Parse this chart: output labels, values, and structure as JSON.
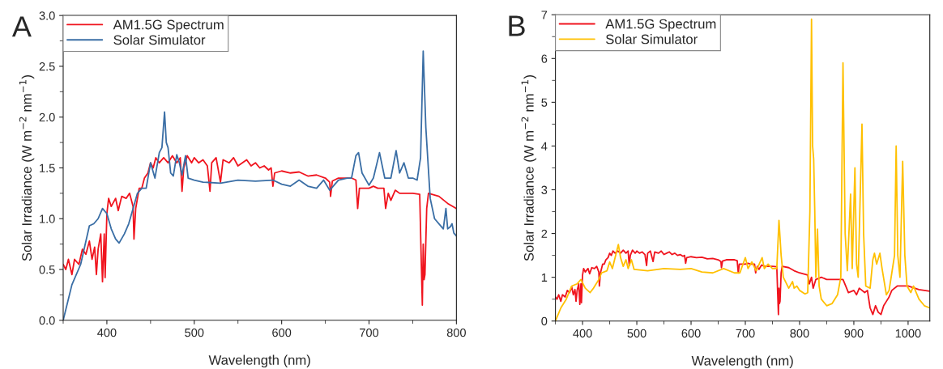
{
  "chart_data": [
    {
      "type": "line",
      "title": "A",
      "xlabel": "Wavelength (nm)",
      "ylabel": "Solar Irradiance (W m$^{−2}$ nm$^{−1}$)",
      "xlim": [
        350,
        800
      ],
      "ylim": [
        0,
        3
      ],
      "xticks": [
        400,
        500,
        600,
        700,
        800
      ],
      "yticks": [
        {
          "value": 0,
          "label": "0.0"
        },
        {
          "value": 0.5,
          "label": "0.5"
        },
        {
          "value": 1,
          "label": "1.0"
        },
        {
          "value": 1.5,
          "label": "1.5"
        },
        {
          "value": 2,
          "label": "2.0"
        },
        {
          "value": 2.5,
          "label": "2.5"
        },
        {
          "value": 3,
          "label": "3.0"
        }
      ],
      "legend": "top left",
      "series": [
        {
          "name": "AM1.5G Spectrum",
          "color": "#f0141e",
          "x": [
            350,
            353,
            356,
            360,
            363,
            368,
            372,
            376,
            380,
            383,
            386,
            388,
            390,
            393,
            395,
            397,
            398,
            400,
            402,
            405,
            410,
            413,
            417,
            422,
            426,
            430,
            431,
            433,
            437,
            440,
            443,
            447,
            450,
            453,
            456,
            460,
            465,
            470,
            475,
            480,
            484,
            486,
            488,
            492,
            497,
            500,
            505,
            510,
            515,
            518,
            520,
            525,
            530,
            533,
            540,
            545,
            550,
            555,
            560,
            565,
            570,
            575,
            580,
            585,
            588,
            590,
            592,
            600,
            610,
            620,
            630,
            640,
            650,
            655,
            656,
            658,
            665,
            670,
            680,
            685,
            687,
            689,
            695,
            700,
            705,
            710,
            717,
            719,
            722,
            725,
            730,
            735,
            740,
            750,
            758,
            760,
            761,
            762,
            763,
            764,
            766,
            768,
            780,
            790,
            800
          ],
          "values": [
            0.55,
            0.5,
            0.6,
            0.45,
            0.6,
            0.55,
            0.7,
            0.65,
            0.78,
            0.6,
            0.72,
            0.45,
            0.7,
            0.85,
            0.38,
            0.85,
            0.42,
            1.05,
            1.2,
            1.12,
            1.2,
            1.08,
            1.22,
            1.2,
            1.25,
            1.12,
            0.8,
            1.1,
            1.3,
            1.3,
            1.4,
            1.45,
            1.55,
            1.5,
            1.6,
            1.55,
            1.6,
            1.55,
            1.62,
            1.55,
            1.6,
            1.27,
            1.5,
            1.62,
            1.55,
            1.6,
            1.55,
            1.58,
            1.52,
            1.27,
            1.55,
            1.6,
            1.36,
            1.58,
            1.55,
            1.6,
            1.52,
            1.55,
            1.58,
            1.52,
            1.55,
            1.5,
            1.52,
            1.48,
            1.5,
            1.32,
            1.45,
            1.47,
            1.45,
            1.46,
            1.42,
            1.43,
            1.4,
            1.36,
            1.22,
            1.37,
            1.4,
            1.4,
            1.4,
            1.38,
            1.1,
            1.3,
            1.3,
            1.3,
            1.32,
            1.3,
            1.3,
            1.1,
            1.25,
            1.18,
            1.28,
            1.25,
            1.25,
            1.25,
            1.24,
            0.5,
            0.15,
            0.75,
            0.4,
            0.45,
            1.1,
            1.25,
            1.22,
            1.15,
            1.1
          ]
        },
        {
          "name": "Solar Simulator",
          "color": "#3a6ea5",
          "x": [
            350,
            360,
            370,
            380,
            385,
            390,
            395,
            400,
            405,
            410,
            414,
            420,
            425,
            430,
            435,
            440,
            445,
            450,
            455,
            460,
            463,
            466,
            468,
            470,
            473,
            476,
            480,
            483,
            486,
            490,
            493,
            500,
            510,
            530,
            550,
            570,
            590,
            600,
            610,
            620,
            630,
            640,
            648,
            655,
            665,
            675,
            680,
            685,
            688,
            692,
            700,
            705,
            712,
            718,
            725,
            731,
            735,
            740,
            745,
            750,
            755,
            759,
            762,
            765,
            770,
            775,
            783,
            785,
            788,
            790,
            793,
            795,
            797,
            800
          ],
          "values": [
            0,
            0.35,
            0.55,
            0.93,
            0.95,
            1.0,
            1.1,
            1.05,
            0.9,
            0.8,
            0.76,
            0.85,
            0.95,
            1.1,
            1.25,
            1.3,
            1.3,
            1.55,
            1.4,
            1.65,
            1.7,
            2.05,
            1.75,
            1.7,
            1.45,
            1.42,
            1.63,
            1.55,
            1.43,
            1.62,
            1.4,
            1.38,
            1.36,
            1.35,
            1.38,
            1.37,
            1.38,
            1.34,
            1.32,
            1.38,
            1.32,
            1.3,
            1.38,
            1.28,
            1.38,
            1.4,
            1.4,
            1.62,
            1.65,
            1.45,
            1.33,
            1.4,
            1.65,
            1.4,
            1.4,
            1.67,
            1.45,
            1.55,
            1.4,
            1.4,
            1.38,
            1.6,
            2.65,
            1.9,
            1.2,
            1.0,
            0.92,
            0.9,
            1.1,
            0.9,
            0.92,
            0.95,
            0.86,
            0.83
          ]
        }
      ]
    },
    {
      "type": "line",
      "title": "B",
      "xlabel": "Wavelength (nm)",
      "ylabel": "Solar Irradiance (W m$^{−2}$ nm$^{−1}$)",
      "xlim": [
        350,
        1040
      ],
      "ylim": [
        0,
        7
      ],
      "xticks": [
        400,
        500,
        600,
        700,
        800,
        900,
        1000
      ],
      "yticks": [
        0,
        1,
        2,
        3,
        4,
        5,
        6,
        7
      ],
      "legend": "top left",
      "series": [
        {
          "name": "AM1.5G Spectrum",
          "color": "#f0141e",
          "x": [
            350,
            353,
            356,
            360,
            363,
            368,
            372,
            376,
            380,
            383,
            386,
            388,
            390,
            393,
            395,
            397,
            398,
            400,
            402,
            405,
            410,
            413,
            417,
            422,
            426,
            430,
            431,
            433,
            437,
            440,
            443,
            447,
            450,
            453,
            456,
            460,
            465,
            470,
            475,
            480,
            484,
            486,
            488,
            492,
            497,
            500,
            505,
            510,
            515,
            518,
            520,
            525,
            530,
            533,
            540,
            545,
            550,
            555,
            560,
            565,
            570,
            575,
            580,
            585,
            588,
            590,
            592,
            600,
            610,
            620,
            630,
            640,
            650,
            655,
            656,
            658,
            665,
            670,
            680,
            685,
            687,
            689,
            695,
            700,
            705,
            710,
            717,
            719,
            722,
            725,
            730,
            735,
            740,
            750,
            758,
            760,
            761,
            762,
            763,
            764,
            766,
            768,
            780,
            790,
            800,
            815,
            818,
            822,
            825,
            830,
            840,
            850,
            870,
            880,
            885,
            890,
            900,
            905,
            910,
            920,
            925,
            930,
            935,
            940,
            945,
            950,
            955,
            960,
            965,
            970,
            980,
            1000,
            1020,
            1040
          ],
          "values": [
            0.55,
            0.5,
            0.6,
            0.45,
            0.6,
            0.55,
            0.7,
            0.65,
            0.78,
            0.6,
            0.72,
            0.45,
            0.7,
            0.85,
            0.38,
            0.85,
            0.42,
            1.05,
            1.2,
            1.12,
            1.2,
            1.08,
            1.22,
            1.2,
            1.25,
            1.12,
            0.8,
            1.1,
            1.3,
            1.3,
            1.4,
            1.45,
            1.55,
            1.5,
            1.6,
            1.55,
            1.6,
            1.55,
            1.62,
            1.55,
            1.6,
            1.27,
            1.5,
            1.62,
            1.55,
            1.6,
            1.55,
            1.58,
            1.52,
            1.27,
            1.55,
            1.6,
            1.36,
            1.58,
            1.55,
            1.6,
            1.52,
            1.55,
            1.58,
            1.52,
            1.55,
            1.5,
            1.52,
            1.48,
            1.5,
            1.32,
            1.45,
            1.47,
            1.45,
            1.46,
            1.42,
            1.43,
            1.4,
            1.36,
            1.22,
            1.37,
            1.4,
            1.4,
            1.4,
            1.38,
            1.1,
            1.3,
            1.3,
            1.3,
            1.32,
            1.3,
            1.3,
            1.1,
            1.25,
            1.18,
            1.28,
            1.25,
            1.25,
            1.25,
            1.24,
            0.5,
            0.15,
            0.75,
            0.4,
            0.45,
            1.1,
            1.25,
            1.22,
            1.15,
            1.1,
            1.05,
            0.85,
            1.0,
            0.75,
            0.95,
            1.0,
            0.95,
            0.95,
            0.95,
            0.8,
            0.65,
            0.7,
            0.6,
            0.75,
            0.65,
            0.7,
            0.3,
            0.15,
            0.35,
            0.2,
            0.15,
            0.35,
            0.45,
            0.55,
            0.7,
            0.8,
            0.8,
            0.72,
            0.68
          ]
        },
        {
          "name": "Solar Simulator",
          "color": "#ffc000",
          "x": [
            350,
            360,
            370,
            380,
            390,
            397,
            405,
            414,
            420,
            430,
            435,
            445,
            450,
            455,
            460,
            466,
            470,
            475,
            480,
            484,
            490,
            495,
            520,
            550,
            580,
            600,
            620,
            640,
            660,
            680,
            690,
            700,
            705,
            712,
            720,
            731,
            735,
            742,
            750,
            758,
            762,
            766,
            770,
            780,
            787,
            790,
            795,
            800,
            810,
            815,
            819,
            822,
            824,
            826,
            828,
            830,
            833,
            836,
            840,
            850,
            860,
            870,
            876,
            880,
            884,
            888,
            894,
            897,
            902,
            905,
            908,
            915,
            918,
            922,
            930,
            935,
            938,
            942,
            948,
            952,
            960,
            965,
            970,
            975,
            978,
            981,
            985,
            990,
            994,
            998,
            1005,
            1010,
            1015,
            1020,
            1030,
            1040
          ],
          "values": [
            0,
            0.3,
            0.5,
            0.8,
            0.85,
            0.95,
            0.75,
            0.65,
            0.75,
            0.95,
            1.1,
            1.15,
            1.35,
            1.2,
            1.45,
            1.75,
            1.45,
            1.25,
            1.4,
            1.2,
            1.4,
            1.18,
            1.15,
            1.2,
            1.18,
            1.2,
            1.12,
            1.1,
            1.2,
            1.1,
            1.1,
            1.45,
            1.2,
            1.35,
            1.15,
            1.45,
            1.2,
            1.3,
            1.2,
            1.2,
            2.3,
            1.5,
            1.0,
            0.75,
            0.9,
            0.75,
            0.8,
            0.7,
            0.62,
            0.65,
            2.5,
            6.9,
            4.0,
            3.7,
            2.5,
            1.0,
            2.1,
            0.8,
            0.5,
            0.35,
            0.4,
            0.6,
            1.0,
            5.9,
            2.0,
            1.15,
            2.9,
            1.2,
            3.5,
            1.3,
            1.0,
            4.5,
            2.0,
            0.8,
            0.75,
            1.4,
            1.55,
            1.3,
            1.55,
            1.2,
            0.6,
            0.7,
            1.1,
            1.5,
            4.0,
            1.5,
            1.0,
            3.65,
            1.5,
            0.8,
            0.65,
            0.8,
            0.65,
            0.5,
            0.35,
            0.3
          ]
        }
      ]
    }
  ]
}
